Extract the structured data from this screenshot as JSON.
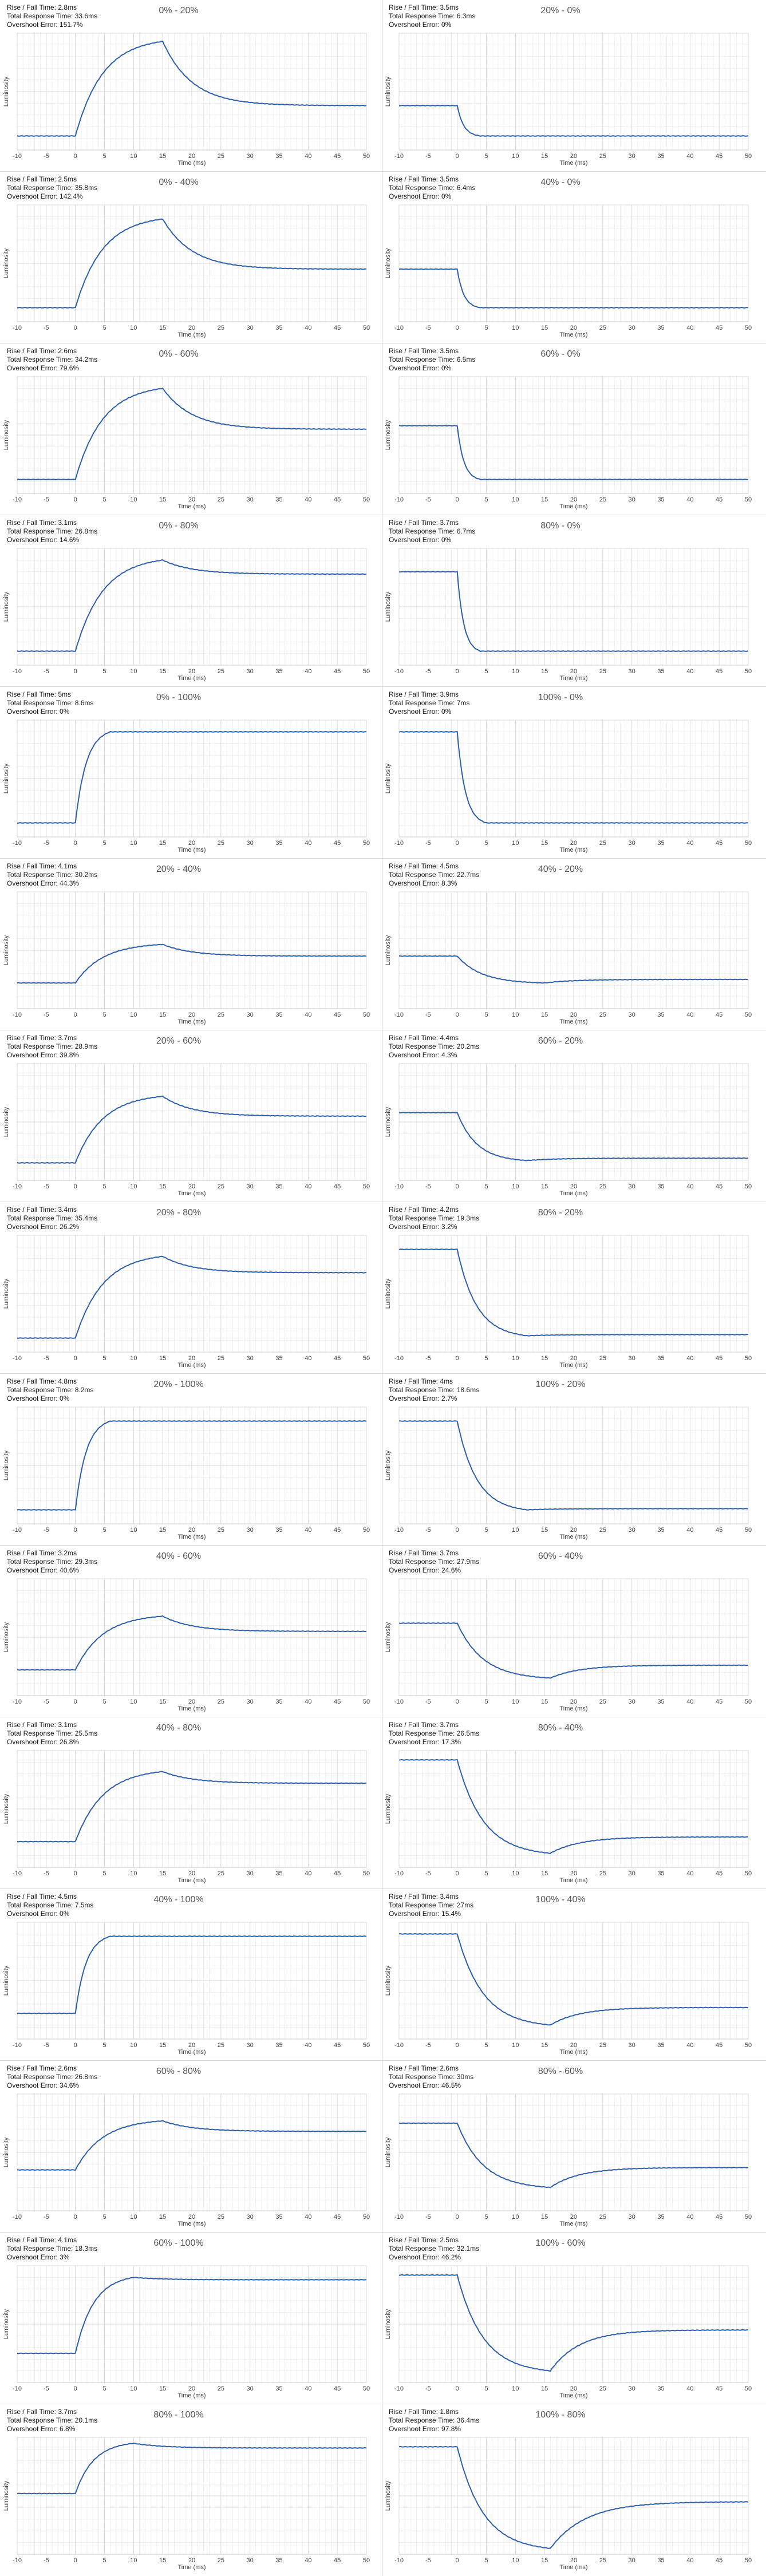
{
  "page": {
    "title": ""
  },
  "labels": {
    "rise_fall_prefix": "Rise / Fall Time: ",
    "total_prefix": "Total Response Time: ",
    "overshoot_prefix": "Overshoot Error: "
  },
  "colors": {
    "line": "#2f5fa8",
    "grid_major": "#d9d9d9",
    "grid_minor": "#efefef",
    "axis": "#c8c8c8"
  },
  "chart_data": [
    {
      "type": "line",
      "title": "0% - 20%",
      "rise_fall": "2.8ms",
      "total": "33.6ms",
      "overshoot": "151.7%",
      "xlabel": "Time (ms)",
      "ylabel": "Luminosity",
      "xlim": [
        -10,
        50
      ],
      "x_ticks": [
        -10,
        -5,
        0,
        5,
        10,
        15,
        20,
        25,
        30,
        35,
        40,
        45,
        50
      ],
      "start": 0.12,
      "peak": 0.93,
      "final": 0.38,
      "peak_time": 15,
      "settle_time": 5,
      "kind": "rise"
    },
    {
      "type": "line",
      "title": "20% - 0%",
      "rise_fall": "3.5ms",
      "total": "6.3ms",
      "overshoot": "0%",
      "xlabel": "Time (ms)",
      "ylabel": "Luminosity",
      "xlim": [
        -10,
        50
      ],
      "x_ticks": [
        -10,
        -5,
        0,
        5,
        10,
        15,
        20,
        25,
        30,
        35,
        40,
        45,
        50
      ],
      "start": 0.38,
      "peak": 0.12,
      "final": 0.12,
      "peak_time": 4,
      "settle_time": 3,
      "kind": "fall"
    },
    {
      "type": "line",
      "title": "0% - 40%",
      "rise_fall": "2.5ms",
      "total": "35.8ms",
      "overshoot": "142.4%",
      "xlabel": "Time (ms)",
      "ylabel": "Luminosity",
      "xlim": [
        -10,
        50
      ],
      "x_ticks": [
        -10,
        -5,
        0,
        5,
        10,
        15,
        20,
        25,
        30,
        35,
        40,
        45,
        50
      ],
      "start": 0.12,
      "peak": 0.88,
      "final": 0.45,
      "peak_time": 15,
      "settle_time": 5,
      "kind": "rise"
    },
    {
      "type": "line",
      "title": "40% - 0%",
      "rise_fall": "3.5ms",
      "total": "6.4ms",
      "overshoot": "0%",
      "xlabel": "Time (ms)",
      "ylabel": "Luminosity",
      "xlim": [
        -10,
        50
      ],
      "x_ticks": [
        -10,
        -5,
        0,
        5,
        10,
        15,
        20,
        25,
        30,
        35,
        40,
        45,
        50
      ],
      "start": 0.45,
      "peak": 0.12,
      "final": 0.12,
      "peak_time": 4,
      "settle_time": 3,
      "kind": "fall"
    },
    {
      "type": "line",
      "title": "0% - 60%",
      "rise_fall": "2.6ms",
      "total": "34.2ms",
      "overshoot": "79.6%",
      "xlabel": "Time (ms)",
      "ylabel": "Luminosity",
      "xlim": [
        -10,
        50
      ],
      "x_ticks": [
        -10,
        -5,
        0,
        5,
        10,
        15,
        20,
        25,
        30,
        35,
        40,
        45,
        50
      ],
      "start": 0.12,
      "peak": 0.9,
      "final": 0.55,
      "peak_time": 15,
      "settle_time": 5,
      "kind": "rise"
    },
    {
      "type": "line",
      "title": "60% - 0%",
      "rise_fall": "3.5ms",
      "total": "6.5ms",
      "overshoot": "0%",
      "xlabel": "Time (ms)",
      "ylabel": "Luminosity",
      "xlim": [
        -10,
        50
      ],
      "x_ticks": [
        -10,
        -5,
        0,
        5,
        10,
        15,
        20,
        25,
        30,
        35,
        40,
        45,
        50
      ],
      "start": 0.58,
      "peak": 0.12,
      "final": 0.12,
      "peak_time": 4,
      "settle_time": 3,
      "kind": "fall"
    },
    {
      "type": "line",
      "title": "0% - 80%",
      "rise_fall": "3.1ms",
      "total": "26.8ms",
      "overshoot": "14.6%",
      "xlabel": "Time (ms)",
      "ylabel": "Luminosity",
      "xlim": [
        -10,
        50
      ],
      "x_ticks": [
        -10,
        -5,
        0,
        5,
        10,
        15,
        20,
        25,
        30,
        35,
        40,
        45,
        50
      ],
      "start": 0.12,
      "peak": 0.9,
      "final": 0.78,
      "peak_time": 15,
      "settle_time": 5,
      "kind": "rise"
    },
    {
      "type": "line",
      "title": "80% - 0%",
      "rise_fall": "3.7ms",
      "total": "6.7ms",
      "overshoot": "0%",
      "xlabel": "Time (ms)",
      "ylabel": "Luminosity",
      "xlim": [
        -10,
        50
      ],
      "x_ticks": [
        -10,
        -5,
        0,
        5,
        10,
        15,
        20,
        25,
        30,
        35,
        40,
        45,
        50
      ],
      "start": 0.8,
      "peak": 0.12,
      "final": 0.12,
      "peak_time": 4,
      "settle_time": 3,
      "kind": "fall"
    },
    {
      "type": "line",
      "title": "0% - 100%",
      "rise_fall": "5ms",
      "total": "8.6ms",
      "overshoot": "0%",
      "xlabel": "Time (ms)",
      "ylabel": "Luminosity",
      "xlim": [
        -10,
        50
      ],
      "x_ticks": [
        -10,
        -5,
        0,
        5,
        10,
        15,
        20,
        25,
        30,
        35,
        40,
        45,
        50
      ],
      "start": 0.12,
      "peak": 0.9,
      "final": 0.9,
      "peak_time": 6,
      "settle_time": 3,
      "kind": "rise"
    },
    {
      "type": "line",
      "title": "100% - 0%",
      "rise_fall": "3.9ms",
      "total": "7ms",
      "overshoot": "0%",
      "xlabel": "Time (ms)",
      "ylabel": "Luminosity",
      "xlim": [
        -10,
        50
      ],
      "x_ticks": [
        -10,
        -5,
        0,
        5,
        10,
        15,
        20,
        25,
        30,
        35,
        40,
        45,
        50
      ],
      "start": 0.9,
      "peak": 0.12,
      "final": 0.12,
      "peak_time": 5,
      "settle_time": 3,
      "kind": "fall"
    },
    {
      "type": "line",
      "title": "20% - 40%",
      "rise_fall": "4.1ms",
      "total": "30.2ms",
      "overshoot": "44.3%",
      "xlabel": "Time (ms)",
      "ylabel": "Luminosity",
      "xlim": [
        -10,
        50
      ],
      "x_ticks": [
        -10,
        -5,
        0,
        5,
        10,
        15,
        20,
        25,
        30,
        35,
        40,
        45,
        50
      ],
      "start": 0.22,
      "peak": 0.55,
      "final": 0.45,
      "peak_time": 15,
      "settle_time": 5,
      "kind": "rise"
    },
    {
      "type": "line",
      "title": "40% - 20%",
      "rise_fall": "4.5ms",
      "total": "22.7ms",
      "overshoot": "8.3%",
      "xlabel": "Time (ms)",
      "ylabel": "Luminosity",
      "xlim": [
        -10,
        50
      ],
      "x_ticks": [
        -10,
        -5,
        0,
        5,
        10,
        15,
        20,
        25,
        30,
        35,
        40,
        45,
        50
      ],
      "start": 0.45,
      "peak": 0.22,
      "final": 0.25,
      "peak_time": 15,
      "settle_time": 5,
      "kind": "fall"
    },
    {
      "type": "line",
      "title": "20% - 60%",
      "rise_fall": "3.7ms",
      "total": "28.9ms",
      "overshoot": "39.8%",
      "xlabel": "Time (ms)",
      "ylabel": "Luminosity",
      "xlim": [
        -10,
        50
      ],
      "x_ticks": [
        -10,
        -5,
        0,
        5,
        10,
        15,
        20,
        25,
        30,
        35,
        40,
        45,
        50
      ],
      "start": 0.15,
      "peak": 0.72,
      "final": 0.55,
      "peak_time": 15,
      "settle_time": 5,
      "kind": "rise"
    },
    {
      "type": "line",
      "title": "60% - 20%",
      "rise_fall": "4.4ms",
      "total": "20.2ms",
      "overshoot": "4.3%",
      "xlabel": "Time (ms)",
      "ylabel": "Luminosity",
      "xlim": [
        -10,
        50
      ],
      "x_ticks": [
        -10,
        -5,
        0,
        5,
        10,
        15,
        20,
        25,
        30,
        35,
        40,
        45,
        50
      ],
      "start": 0.58,
      "peak": 0.17,
      "final": 0.19,
      "peak_time": 12,
      "settle_time": 5,
      "kind": "fall"
    },
    {
      "type": "line",
      "title": "20% - 80%",
      "rise_fall": "3.4ms",
      "total": "35.4ms",
      "overshoot": "26.2%",
      "xlabel": "Time (ms)",
      "ylabel": "Luminosity",
      "xlim": [
        -10,
        50
      ],
      "x_ticks": [
        -10,
        -5,
        0,
        5,
        10,
        15,
        20,
        25,
        30,
        35,
        40,
        45,
        50
      ],
      "start": 0.12,
      "peak": 0.82,
      "final": 0.68,
      "peak_time": 15,
      "settle_time": 5,
      "kind": "rise"
    },
    {
      "type": "line",
      "title": "80% - 20%",
      "rise_fall": "4.2ms",
      "total": "19.3ms",
      "overshoot": "3.2%",
      "xlabel": "Time (ms)",
      "ylabel": "Luminosity",
      "xlim": [
        -10,
        50
      ],
      "x_ticks": [
        -10,
        -5,
        0,
        5,
        10,
        15,
        20,
        25,
        30,
        35,
        40,
        45,
        50
      ],
      "start": 0.88,
      "peak": 0.14,
      "final": 0.15,
      "peak_time": 12,
      "settle_time": 5,
      "kind": "fall"
    },
    {
      "type": "line",
      "title": "20% - 100%",
      "rise_fall": "4.8ms",
      "total": "8.2ms",
      "overshoot": "0%",
      "xlabel": "Time (ms)",
      "ylabel": "Luminosity",
      "xlim": [
        -10,
        50
      ],
      "x_ticks": [
        -10,
        -5,
        0,
        5,
        10,
        15,
        20,
        25,
        30,
        35,
        40,
        45,
        50
      ],
      "start": 0.12,
      "peak": 0.88,
      "final": 0.88,
      "peak_time": 6,
      "settle_time": 3,
      "kind": "rise"
    },
    {
      "type": "line",
      "title": "100% - 20%",
      "rise_fall": "4ms",
      "total": "18.6ms",
      "overshoot": "2.7%",
      "xlabel": "Time (ms)",
      "ylabel": "Luminosity",
      "xlim": [
        -10,
        50
      ],
      "x_ticks": [
        -10,
        -5,
        0,
        5,
        10,
        15,
        20,
        25,
        30,
        35,
        40,
        45,
        50
      ],
      "start": 0.88,
      "peak": 0.12,
      "final": 0.13,
      "peak_time": 12,
      "settle_time": 5,
      "kind": "fall"
    },
    {
      "type": "line",
      "title": "40% - 60%",
      "rise_fall": "3.2ms",
      "total": "29.3ms",
      "overshoot": "40.6%",
      "xlabel": "Time (ms)",
      "ylabel": "Luminosity",
      "xlim": [
        -10,
        50
      ],
      "x_ticks": [
        -10,
        -5,
        0,
        5,
        10,
        15,
        20,
        25,
        30,
        35,
        40,
        45,
        50
      ],
      "start": 0.22,
      "peak": 0.68,
      "final": 0.55,
      "peak_time": 15,
      "settle_time": 5,
      "kind": "rise"
    },
    {
      "type": "line",
      "title": "60% - 40%",
      "rise_fall": "3.7ms",
      "total": "27.9ms",
      "overshoot": "24.6%",
      "xlabel": "Time (ms)",
      "ylabel": "Luminosity",
      "xlim": [
        -10,
        50
      ],
      "x_ticks": [
        -10,
        -5,
        0,
        5,
        10,
        15,
        20,
        25,
        30,
        35,
        40,
        45,
        50
      ],
      "start": 0.62,
      "peak": 0.15,
      "final": 0.26,
      "peak_time": 16,
      "settle_time": 5,
      "kind": "fall"
    },
    {
      "type": "line",
      "title": "40% - 80%",
      "rise_fall": "3.1ms",
      "total": "25.5ms",
      "overshoot": "26.8%",
      "xlabel": "Time (ms)",
      "ylabel": "Luminosity",
      "xlim": [
        -10,
        50
      ],
      "x_ticks": [
        -10,
        -5,
        0,
        5,
        10,
        15,
        20,
        25,
        30,
        35,
        40,
        45,
        50
      ],
      "start": 0.22,
      "peak": 0.82,
      "final": 0.72,
      "peak_time": 15,
      "settle_time": 5,
      "kind": "rise"
    },
    {
      "type": "line",
      "title": "80% - 40%",
      "rise_fall": "3.7ms",
      "total": "26.5ms",
      "overshoot": "17.3%",
      "xlabel": "Time (ms)",
      "ylabel": "Luminosity",
      "xlim": [
        -10,
        50
      ],
      "x_ticks": [
        -10,
        -5,
        0,
        5,
        10,
        15,
        20,
        25,
        30,
        35,
        40,
        45,
        50
      ],
      "start": 0.92,
      "peak": 0.12,
      "final": 0.26,
      "peak_time": 16,
      "settle_time": 5,
      "kind": "fall"
    },
    {
      "type": "line",
      "title": "40% - 100%",
      "rise_fall": "4.5ms",
      "total": "7.5ms",
      "overshoot": "0%",
      "xlabel": "Time (ms)",
      "ylabel": "Luminosity",
      "xlim": [
        -10,
        50
      ],
      "x_ticks": [
        -10,
        -5,
        0,
        5,
        10,
        15,
        20,
        25,
        30,
        35,
        40,
        45,
        50
      ],
      "start": 0.22,
      "peak": 0.88,
      "final": 0.88,
      "peak_time": 6,
      "settle_time": 3,
      "kind": "rise"
    },
    {
      "type": "line",
      "title": "100% - 40%",
      "rise_fall": "3.4ms",
      "total": "27ms",
      "overshoot": "15.4%",
      "xlabel": "Time (ms)",
      "ylabel": "Luminosity",
      "xlim": [
        -10,
        50
      ],
      "x_ticks": [
        -10,
        -5,
        0,
        5,
        10,
        15,
        20,
        25,
        30,
        35,
        40,
        45,
        50
      ],
      "start": 0.9,
      "peak": 0.12,
      "final": 0.27,
      "peak_time": 16,
      "settle_time": 5,
      "kind": "fall"
    },
    {
      "type": "line",
      "title": "60% - 80%",
      "rise_fall": "2.6ms",
      "total": "26.8ms",
      "overshoot": "34.6%",
      "xlabel": "Time (ms)",
      "ylabel": "Luminosity",
      "xlim": [
        -10,
        50
      ],
      "x_ticks": [
        -10,
        -5,
        0,
        5,
        10,
        15,
        20,
        25,
        30,
        35,
        40,
        45,
        50
      ],
      "start": 0.35,
      "peak": 0.77,
      "final": 0.68,
      "peak_time": 15,
      "settle_time": 5,
      "kind": "rise"
    },
    {
      "type": "line",
      "title": "80% - 60%",
      "rise_fall": "2.6ms",
      "total": "30ms",
      "overshoot": "46.5%",
      "xlabel": "Time (ms)",
      "ylabel": "Luminosity",
      "xlim": [
        -10,
        50
      ],
      "x_ticks": [
        -10,
        -5,
        0,
        5,
        10,
        15,
        20,
        25,
        30,
        35,
        40,
        45,
        50
      ],
      "start": 0.75,
      "peak": 0.2,
      "final": 0.37,
      "peak_time": 16,
      "settle_time": 5,
      "kind": "fall"
    },
    {
      "type": "line",
      "title": "60% - 100%",
      "rise_fall": "4.1ms",
      "total": "18.3ms",
      "overshoot": "3%",
      "xlabel": "Time (ms)",
      "ylabel": "Luminosity",
      "xlim": [
        -10,
        50
      ],
      "x_ticks": [
        -10,
        -5,
        0,
        5,
        10,
        15,
        20,
        25,
        30,
        35,
        40,
        45,
        50
      ],
      "start": 0.25,
      "peak": 0.9,
      "final": 0.88,
      "peak_time": 10,
      "settle_time": 5,
      "kind": "rise"
    },
    {
      "type": "line",
      "title": "100% - 60%",
      "rise_fall": "2.5ms",
      "total": "32.1ms",
      "overshoot": "46.2%",
      "xlabel": "Time (ms)",
      "ylabel": "Luminosity",
      "xlim": [
        -10,
        50
      ],
      "x_ticks": [
        -10,
        -5,
        0,
        5,
        10,
        15,
        20,
        25,
        30,
        35,
        40,
        45,
        50
      ],
      "start": 0.92,
      "peak": 0.1,
      "final": 0.45,
      "peak_time": 16,
      "settle_time": 5,
      "kind": "fall"
    },
    {
      "type": "line",
      "title": "80% - 100%",
      "rise_fall": "3.7ms",
      "total": "20.1ms",
      "overshoot": "6.8%",
      "xlabel": "Time (ms)",
      "ylabel": "Luminosity",
      "xlim": [
        -10,
        50
      ],
      "x_ticks": [
        -10,
        -5,
        0,
        5,
        10,
        15,
        20,
        25,
        30,
        35,
        40,
        45,
        50
      ],
      "start": 0.52,
      "peak": 0.95,
      "final": 0.91,
      "peak_time": 10,
      "settle_time": 5,
      "kind": "rise"
    },
    {
      "type": "line",
      "title": "100% - 80%",
      "rise_fall": "1.8ms",
      "total": "36.4ms",
      "overshoot": "97.8%",
      "xlabel": "Time (ms)",
      "ylabel": "Luminosity",
      "xlim": [
        -10,
        50
      ],
      "x_ticks": [
        -10,
        -5,
        0,
        5,
        10,
        15,
        20,
        25,
        30,
        35,
        40,
        45,
        50
      ],
      "start": 0.92,
      "peak": 0.05,
      "final": 0.45,
      "peak_time": 16,
      "settle_time": 6,
      "kind": "fall"
    }
  ]
}
